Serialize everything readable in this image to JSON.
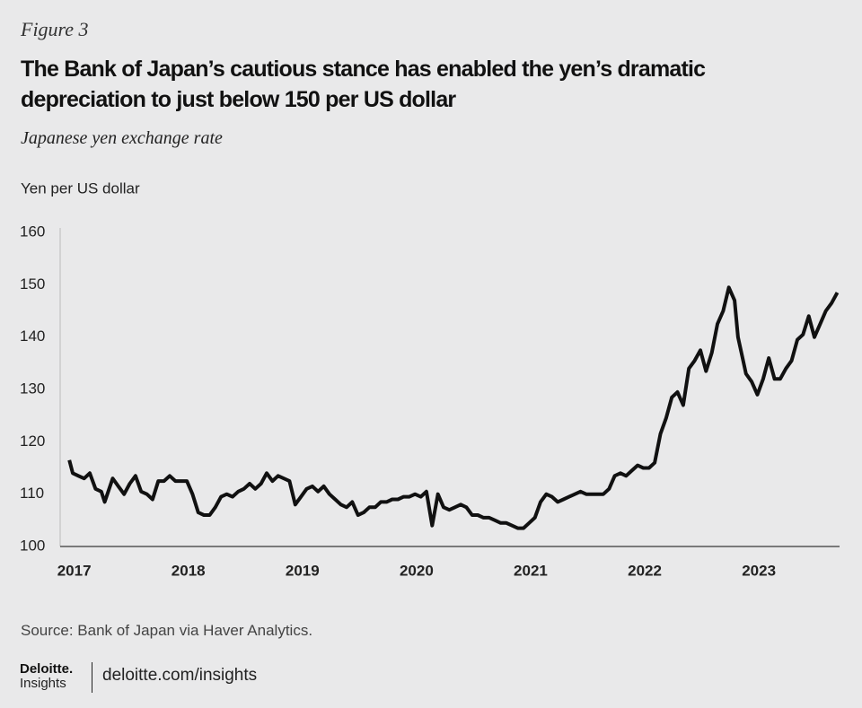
{
  "figure_label": "Figure 3",
  "source": "Source: Bank of Japan via Haver Analytics.",
  "footer": {
    "brand": "Deloitte.",
    "brand_sub": "Insights",
    "url": "deloitte.com/insights"
  },
  "chart_data": {
    "type": "line",
    "title": "The Bank of Japan’s cautious stance has enabled the yen’s dramatic depreciation to just below 150 per US dollar",
    "subtitle": "Japanese yen exchange rate",
    "y_label": "Yen per US dollar",
    "color": "#111111",
    "xlim": [
      2016.94,
      2023.77
    ],
    "xticks": [
      2017,
      2018,
      2019,
      2020,
      2021,
      2022,
      2023
    ],
    "ylim": [
      100,
      160
    ],
    "yticks": [
      100,
      110,
      120,
      130,
      140,
      150,
      160
    ],
    "grid": false,
    "x": [
      2017.02,
      2017.05,
      2017.1,
      2017.15,
      2017.2,
      2017.25,
      2017.3,
      2017.33,
      2017.4,
      2017.45,
      2017.5,
      2017.55,
      2017.6,
      2017.65,
      2017.7,
      2017.75,
      2017.8,
      2017.85,
      2017.9,
      2017.95,
      2018.0,
      2018.05,
      2018.1,
      2018.15,
      2018.2,
      2018.25,
      2018.3,
      2018.35,
      2018.4,
      2018.45,
      2018.5,
      2018.55,
      2018.6,
      2018.65,
      2018.7,
      2018.75,
      2018.8,
      2018.85,
      2018.9,
      2018.95,
      2019.0,
      2019.05,
      2019.1,
      2019.15,
      2019.2,
      2019.25,
      2019.3,
      2019.35,
      2019.4,
      2019.45,
      2019.5,
      2019.55,
      2019.6,
      2019.65,
      2019.7,
      2019.75,
      2019.8,
      2019.85,
      2019.9,
      2019.95,
      2020.0,
      2020.05,
      2020.1,
      2020.15,
      2020.2,
      2020.25,
      2020.3,
      2020.35,
      2020.4,
      2020.45,
      2020.5,
      2020.55,
      2020.6,
      2020.65,
      2020.7,
      2020.75,
      2020.8,
      2020.85,
      2020.9,
      2020.95,
      2021.0,
      2021.05,
      2021.1,
      2021.15,
      2021.2,
      2021.25,
      2021.3,
      2021.35,
      2021.4,
      2021.45,
      2021.5,
      2021.55,
      2021.6,
      2021.65,
      2021.7,
      2021.75,
      2021.8,
      2021.85,
      2021.9,
      2021.95,
      2022.0,
      2022.05,
      2022.1,
      2022.15,
      2022.2,
      2022.25,
      2022.3,
      2022.35,
      2022.4,
      2022.45,
      2022.5,
      2022.55,
      2022.6,
      2022.65,
      2022.7,
      2022.75,
      2022.8,
      2022.85,
      2022.88,
      2022.92,
      2022.95,
      2023.0,
      2023.05,
      2023.1,
      2023.15,
      2023.2,
      2023.25,
      2023.3,
      2023.35,
      2023.4,
      2023.45,
      2023.5,
      2023.55,
      2023.6,
      2023.65,
      2023.7,
      2023.75
    ],
    "values": [
      116.5,
      114,
      113.5,
      113,
      114,
      111,
      110.5,
      108.5,
      113,
      111.5,
      110,
      112,
      113.5,
      110.5,
      110,
      109,
      112.5,
      112.5,
      113.5,
      112.5,
      112.5,
      112.5,
      110,
      106.5,
      106,
      106,
      107.5,
      109.5,
      110,
      109.5,
      110.5,
      111,
      112,
      111,
      112,
      114,
      112.5,
      113.5,
      113,
      112.5,
      108,
      109.5,
      111,
      111.5,
      110.5,
      111.5,
      110,
      109,
      108,
      107.5,
      108.5,
      106,
      106.5,
      107.5,
      107.5,
      108.5,
      108.5,
      109,
      109,
      109.5,
      109.5,
      110,
      109.5,
      110.5,
      104,
      110,
      107.5,
      107,
      107.5,
      108,
      107.5,
      106,
      106,
      105.5,
      105.5,
      105,
      104.5,
      104.5,
      104,
      103.5,
      103.5,
      104.5,
      105.5,
      108.5,
      110,
      109.5,
      108.5,
      109,
      109.5,
      110,
      110.5,
      110,
      110,
      110,
      110,
      111,
      113.5,
      114,
      113.5,
      114.5,
      115.5,
      115,
      115,
      116,
      121.5,
      124.5,
      128.5,
      129.5,
      127,
      134,
      135.5,
      137.5,
      133.5,
      137,
      142.5,
      145,
      149.5,
      147,
      140,
      136,
      133,
      131.5,
      129,
      132,
      136,
      132,
      132,
      134,
      135.5,
      139.5,
      140.5,
      144,
      140,
      142.5,
      145,
      146.5,
      148.5
    ]
  }
}
